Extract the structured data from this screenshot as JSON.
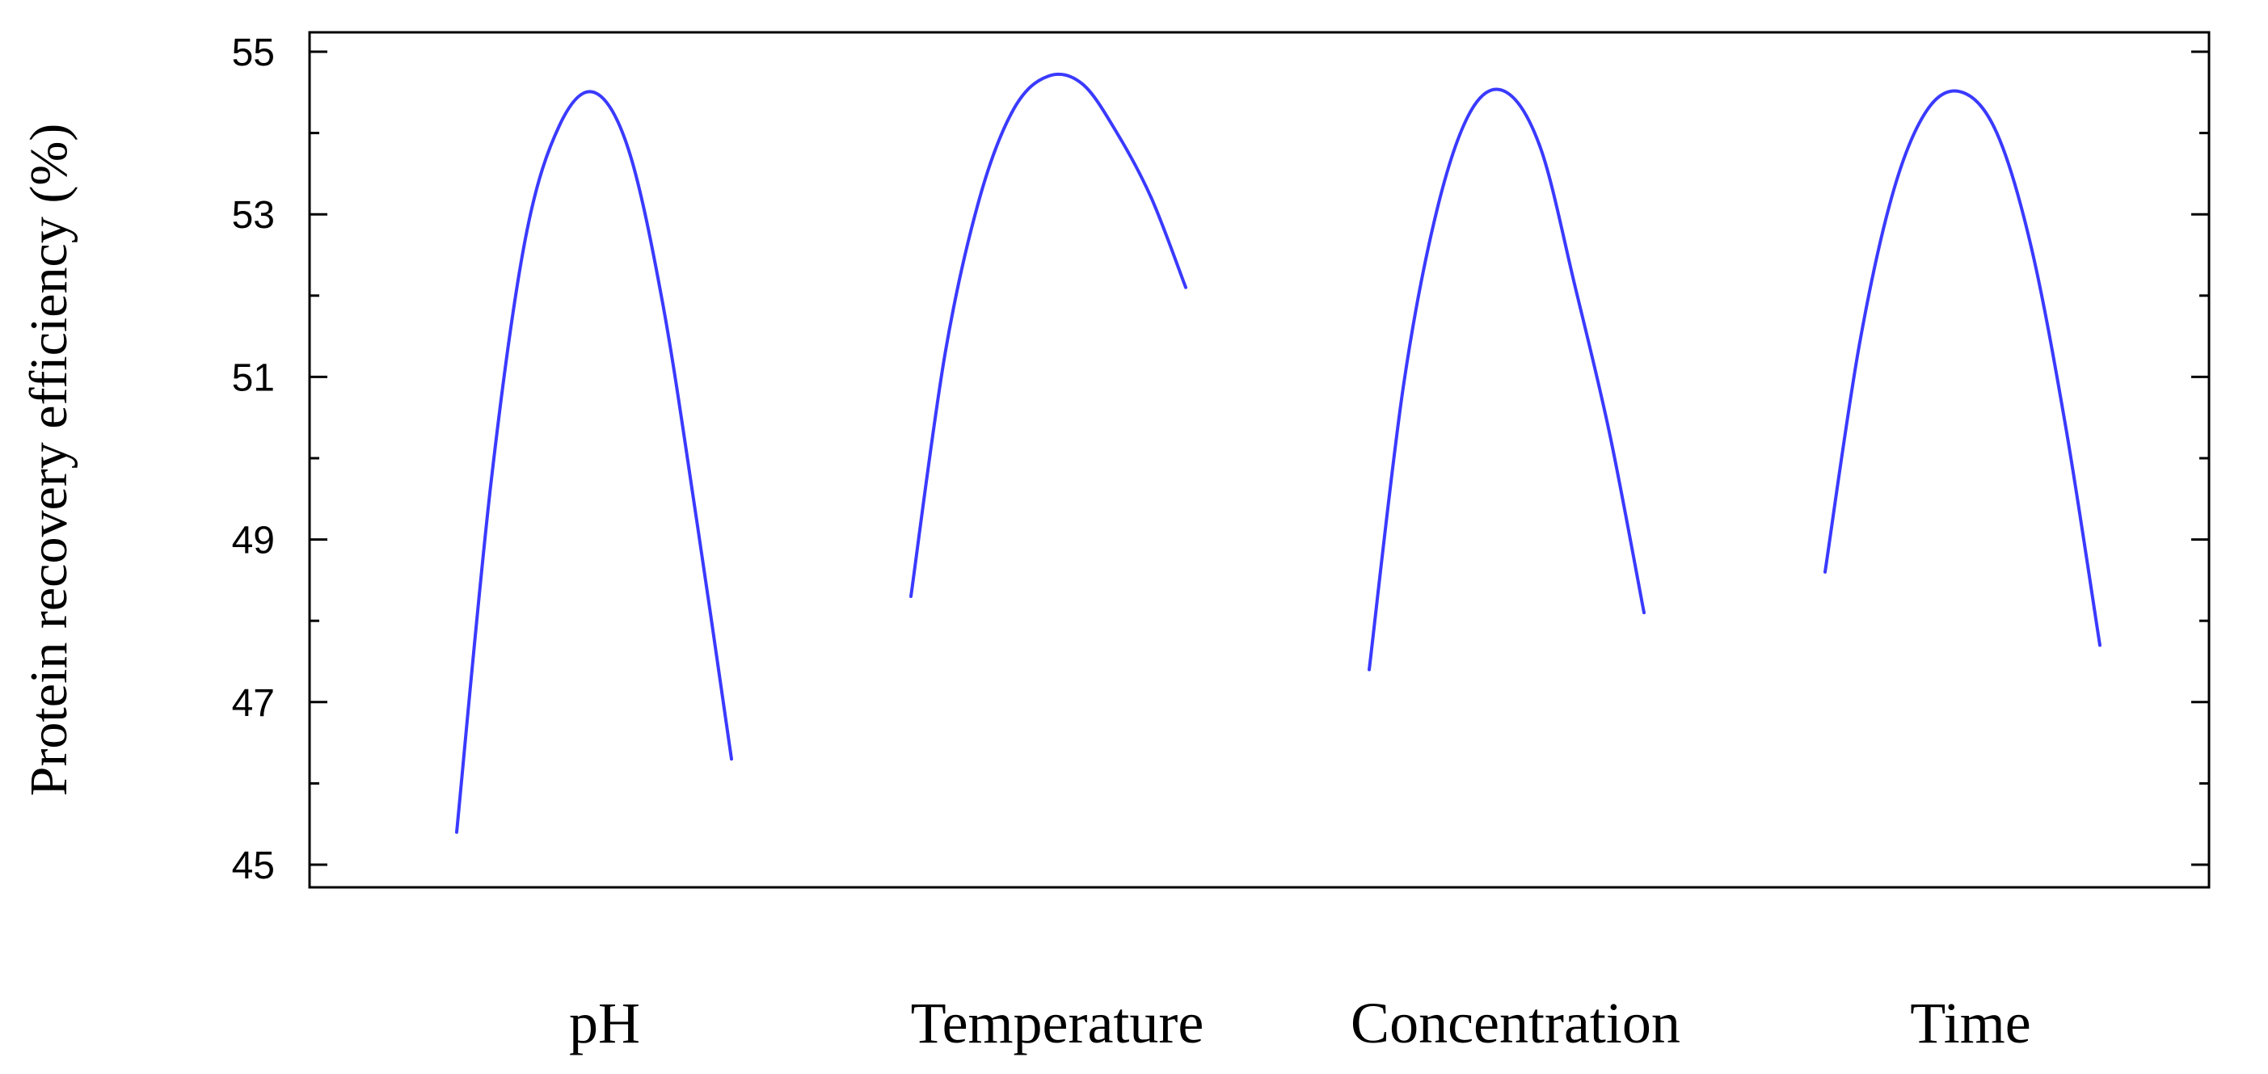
{
  "chart_data": {
    "type": "line",
    "title": "",
    "xlabel": "",
    "ylabel": "Protein recovery efficiency (%)",
    "ylim": [
      44.8,
      55.3
    ],
    "yticks": [
      45,
      47,
      49,
      51,
      53,
      55
    ],
    "grid": false,
    "legend": "none",
    "line_color": "#3a3aff",
    "categories": [
      "pH",
      "Temperature",
      "Concentration",
      "Time"
    ],
    "series": [
      {
        "x": [
          -1.0,
          -0.75,
          -0.5,
          -0.25,
          0.0,
          0.25,
          0.5,
          0.75,
          1.0
        ],
        "y": [
          45.4,
          49.7,
          52.7,
          54.1,
          54.5,
          53.8,
          51.9,
          49.2,
          46.3
        ]
      },
      {
        "x": [
          -1.0,
          -0.75,
          -0.5,
          -0.25,
          0.0,
          0.25,
          0.5,
          0.75,
          1.0
        ],
        "y": [
          48.3,
          51.3,
          53.2,
          54.3,
          54.7,
          54.6,
          54.0,
          53.2,
          52.1
        ]
      },
      {
        "x": [
          -1.0,
          -0.75,
          -0.5,
          -0.25,
          0.0,
          0.25,
          0.5,
          0.75,
          1.0
        ],
        "y": [
          47.4,
          50.9,
          53.1,
          54.3,
          54.5,
          53.8,
          52.1,
          50.3,
          48.1
        ]
      },
      {
        "x": [
          -1.0,
          -0.75,
          -0.5,
          -0.25,
          0.0,
          0.25,
          0.5,
          0.75,
          1.0
        ],
        "y": [
          48.6,
          51.4,
          53.3,
          54.3,
          54.5,
          54.0,
          52.6,
          50.4,
          47.7
        ]
      }
    ]
  }
}
